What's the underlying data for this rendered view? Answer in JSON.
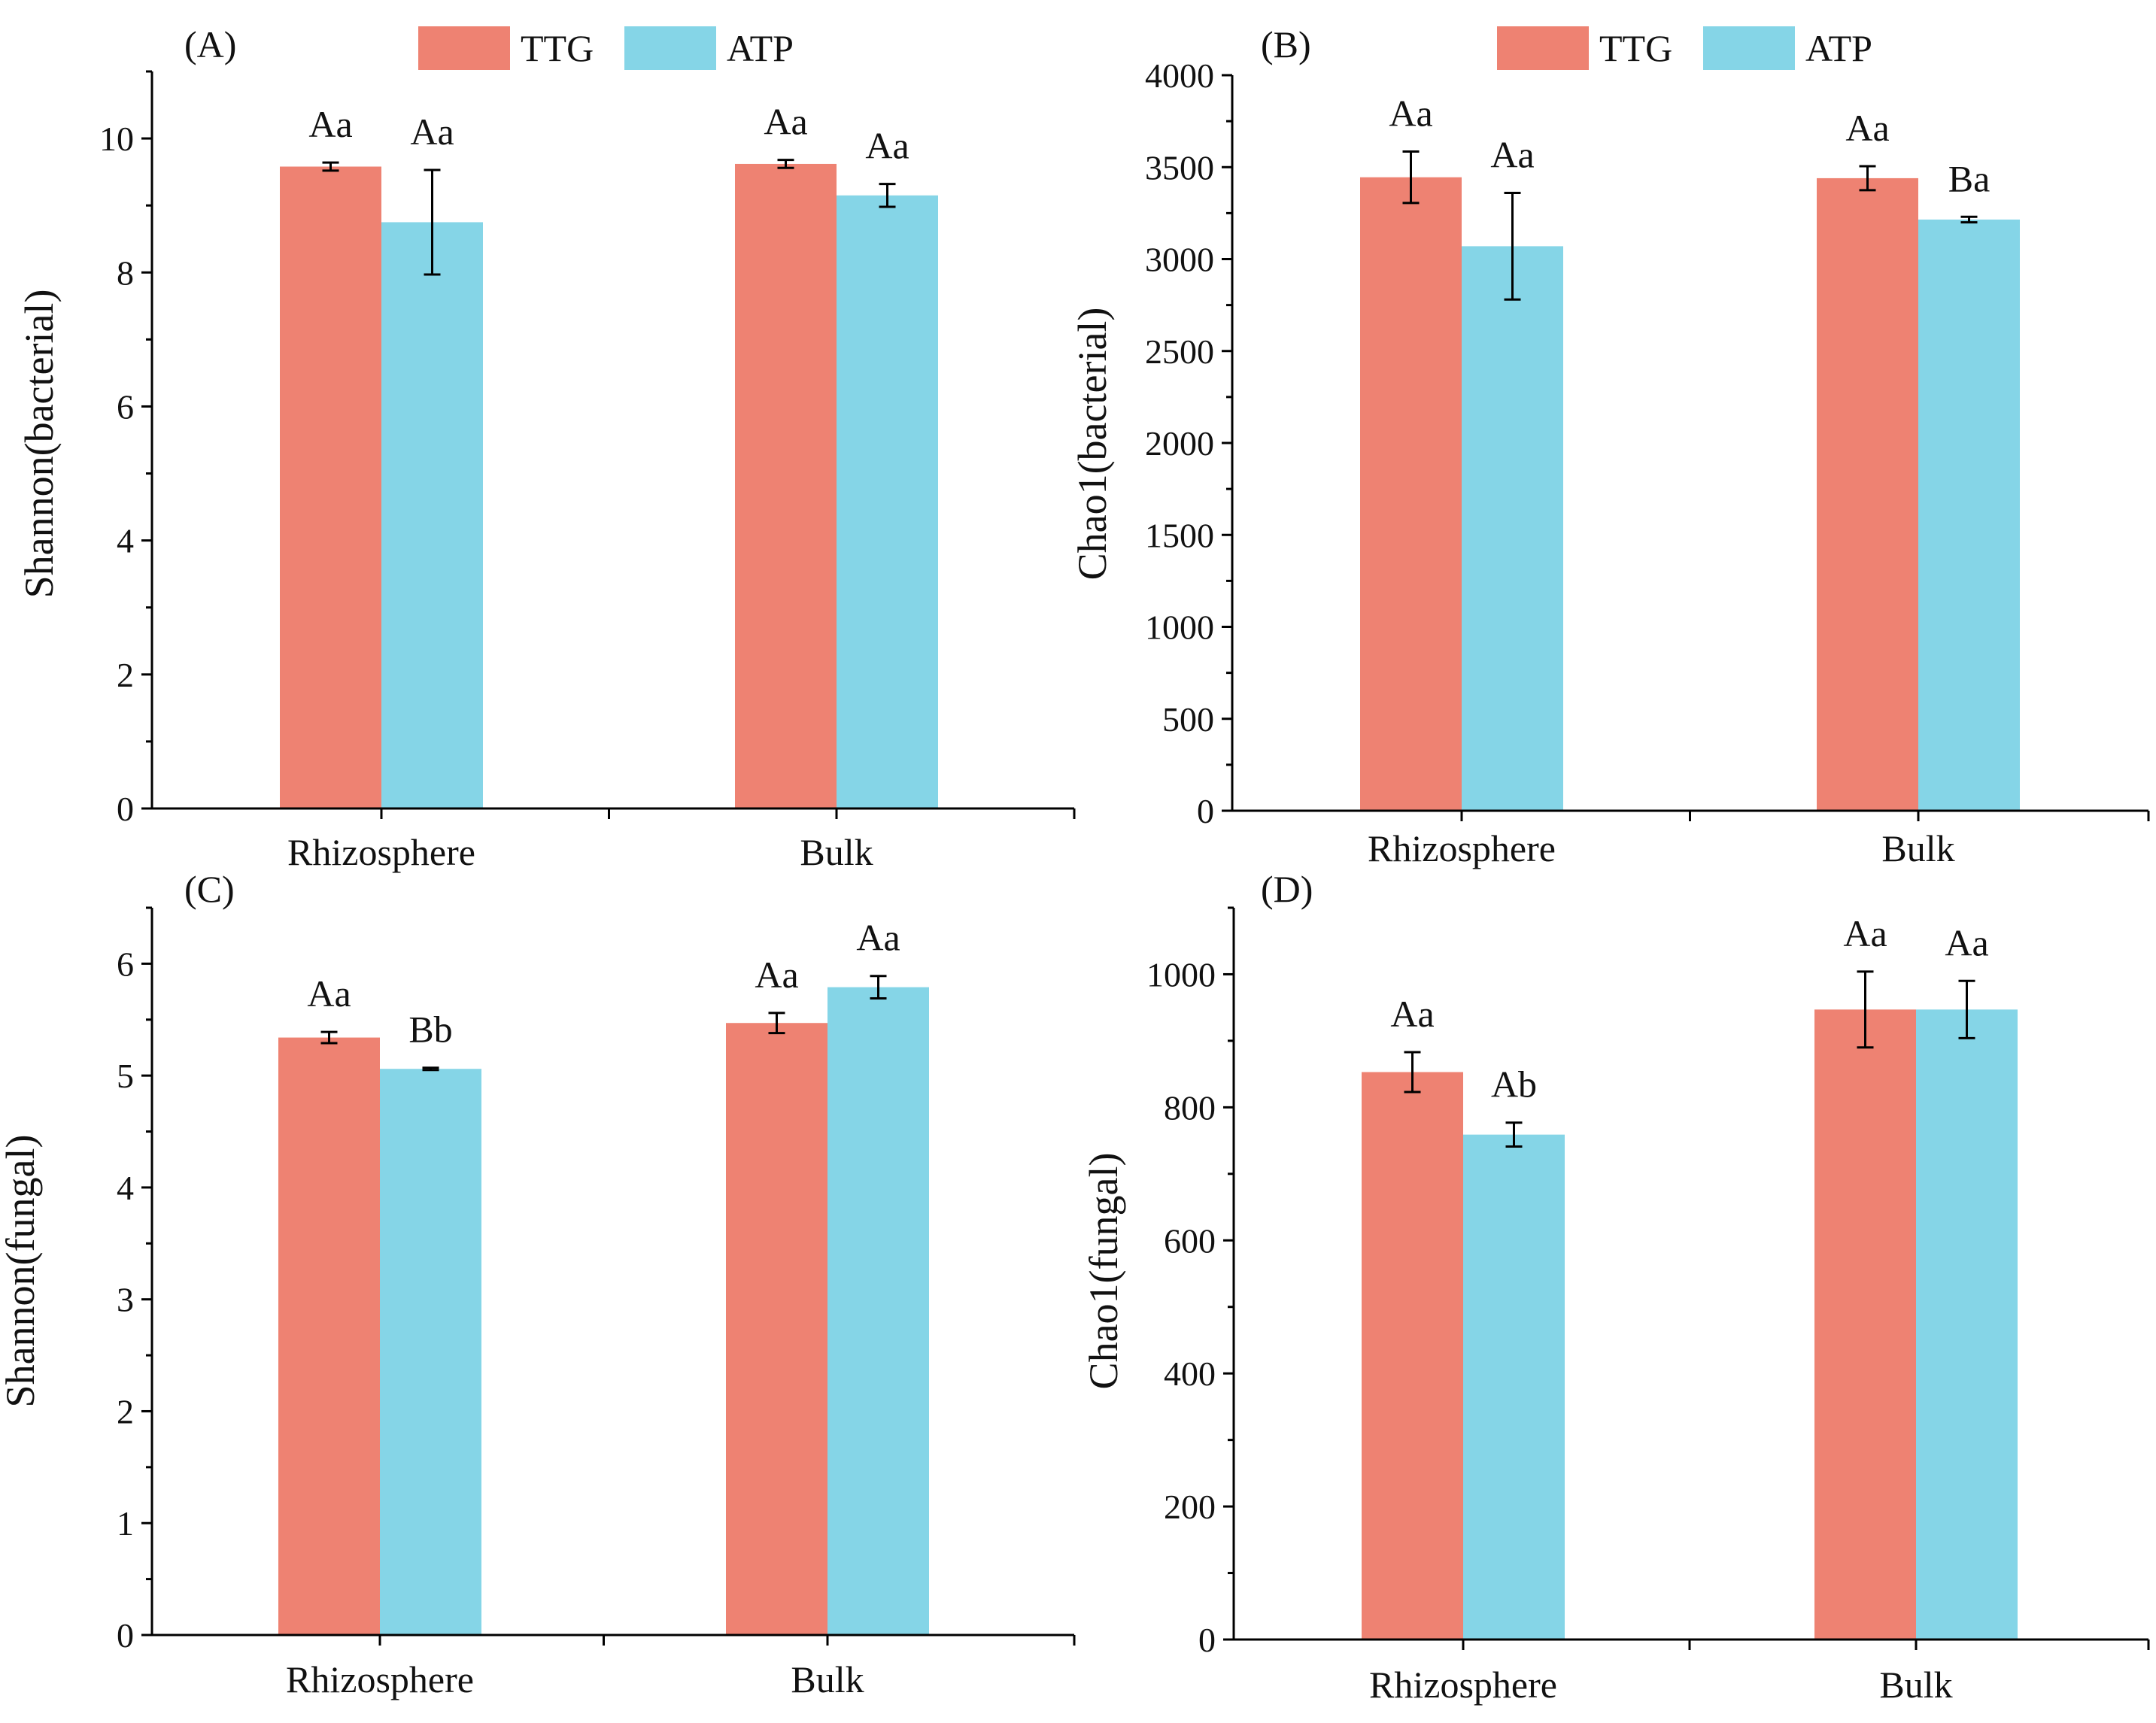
{
  "legend": {
    "ttg": "TTG",
    "atp": "ATP"
  },
  "colors": {
    "TTG": "#ee8272",
    "ATP": "#85d5e7"
  },
  "chart_data": [
    {
      "type": "bar",
      "panel": "(A)",
      "ylabel": "Shannon(bacterial)",
      "categories": [
        "Rhizosphere",
        "Bulk"
      ],
      "ylim": [
        0,
        11
      ],
      "yticks": [
        "0",
        "2",
        "4",
        "6",
        "8",
        "10"
      ],
      "tick_values": [
        0,
        2,
        4,
        6,
        8,
        10
      ],
      "series": [
        {
          "name": "TTG",
          "values": [
            9.58,
            9.62
          ],
          "errors": [
            0.06,
            0.06
          ],
          "labels": [
            "Aa",
            "Aa"
          ]
        },
        {
          "name": "ATP",
          "values": [
            8.75,
            9.15
          ],
          "errors": [
            0.78,
            0.17
          ],
          "labels": [
            "Aa",
            "Aa"
          ]
        }
      ]
    },
    {
      "type": "bar",
      "panel": "(B)",
      "ylabel": "Chao1(bacterial)",
      "categories": [
        "Rhizosphere",
        "Bulk"
      ],
      "ylim": [
        0,
        4000
      ],
      "yticks": [
        "0",
        "500",
        "1000",
        "1500",
        "2000",
        "2500",
        "3000",
        "3500",
        "4000"
      ],
      "tick_values": [
        0,
        500,
        1000,
        1500,
        2000,
        2500,
        3000,
        3500,
        4000
      ],
      "series": [
        {
          "name": "TTG",
          "values": [
            3445,
            3440
          ],
          "errors": [
            140,
            65
          ],
          "labels": [
            "Aa",
            "Aa"
          ]
        },
        {
          "name": "ATP",
          "values": [
            3070,
            3215
          ],
          "errors": [
            290,
            15
          ],
          "labels": [
            "Aa",
            "Ba"
          ]
        }
      ]
    },
    {
      "type": "bar",
      "panel": "(C)",
      "ylabel": "Shannon(fungal)",
      "categories": [
        "Rhizosphere",
        "Bulk"
      ],
      "ylim": [
        0,
        6.5
      ],
      "yticks": [
        "0",
        "1",
        "2",
        "3",
        "4",
        "5",
        "6"
      ],
      "tick_values": [
        0,
        1,
        2,
        3,
        4,
        5,
        6
      ],
      "series": [
        {
          "name": "TTG",
          "values": [
            5.34,
            5.47
          ],
          "errors": [
            0.05,
            0.09
          ],
          "labels": [
            "Aa",
            "Aa"
          ]
        },
        {
          "name": "ATP",
          "values": [
            5.06,
            5.79
          ],
          "errors": [
            0.01,
            0.1
          ],
          "labels": [
            "Bb",
            "Aa"
          ]
        }
      ]
    },
    {
      "type": "bar",
      "panel": "(D)",
      "ylabel": "Chao1(fungal)",
      "categories": [
        "Rhizosphere",
        "Bulk"
      ],
      "ylim": [
        0,
        1100
      ],
      "yticks": [
        "0",
        "200",
        "400",
        "600",
        "800",
        "1000"
      ],
      "tick_values": [
        0,
        200,
        400,
        600,
        800,
        1000
      ],
      "series": [
        {
          "name": "TTG",
          "values": [
            853,
            947
          ],
          "errors": [
            30,
            57
          ],
          "labels": [
            "Aa",
            "Aa"
          ]
        },
        {
          "name": "ATP",
          "values": [
            759,
            947
          ],
          "errors": [
            18,
            43
          ],
          "labels": [
            "Ab",
            "Aa"
          ]
        }
      ]
    }
  ]
}
